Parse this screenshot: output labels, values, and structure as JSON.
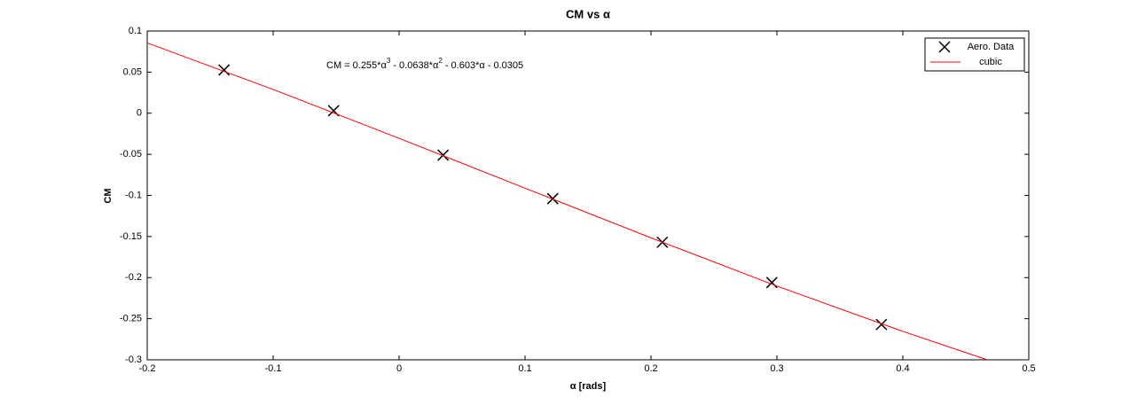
{
  "chart_data": {
    "type": "line",
    "title": "CM vs α",
    "xlabel": "α [rads]",
    "ylabel": "CM",
    "annotation": [
      "CM = 0.255*α",
      "3",
      " - 0.0638*α",
      "2",
      " - 0.603*α - 0.0305"
    ],
    "xlim": [
      -0.2,
      0.5
    ],
    "ylim": [
      -0.3,
      0.1
    ],
    "xticks": [
      -0.2,
      -0.1,
      0,
      0.1,
      0.2,
      0.3,
      0.4,
      0.5
    ],
    "yticks": [
      0.1,
      0.05,
      0,
      -0.05,
      -0.1,
      -0.15,
      -0.2,
      -0.25,
      -0.3
    ],
    "grid": false,
    "legend": "upper right",
    "series": [
      {
        "name": "Aero. Data",
        "type": "scatter",
        "color": "#000000",
        "x": [
          -0.139,
          -0.052,
          0.035,
          0.122,
          0.209,
          0.296,
          0.383
        ],
        "values": [
          0.0526,
          0.003,
          -0.051,
          -0.104,
          -0.157,
          -0.206,
          -0.257
        ]
      },
      {
        "name": "cubic",
        "type": "line",
        "color": "#ff0000",
        "x": [
          -0.2,
          -0.1,
          0,
          0.1,
          0.2,
          0.3,
          0.4,
          0.467
        ],
        "values": [
          0.0855,
          0.0289,
          -0.0305,
          -0.0912,
          -0.1516,
          -0.2103,
          -0.2654,
          -0.3
        ]
      }
    ]
  }
}
